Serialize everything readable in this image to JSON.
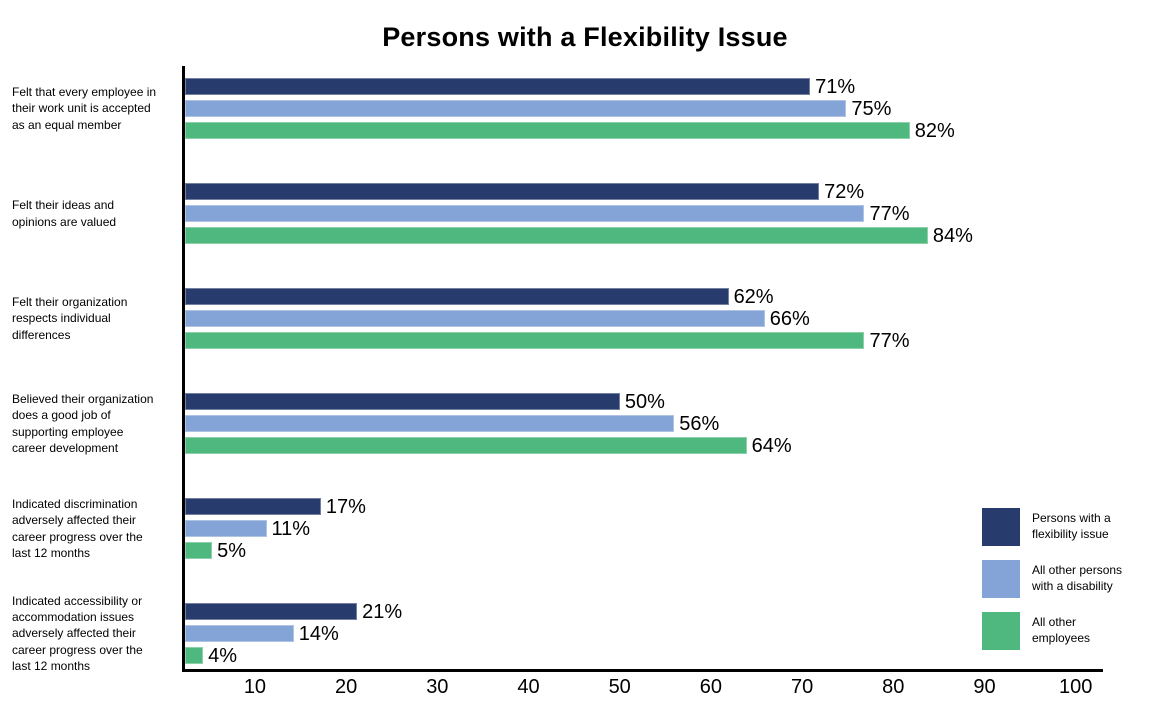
{
  "title": "Persons with a Flexibility Issue",
  "colors": {
    "series_flexibility_issue": "#283B6D",
    "series_other_disability": "#84A4D8",
    "series_other_employees": "#4FB87E",
    "axis": "#000000",
    "background": "#FFFFFF"
  },
  "chart_data": {
    "type": "bar",
    "orientation": "horizontal",
    "title": "Persons with a Flexibility Issue",
    "xlabel": "",
    "ylabel": "",
    "value_unit": "%",
    "grid": false,
    "legend_position": "right",
    "axis": {
      "min": 2,
      "max": 103,
      "ticks": [
        10,
        20,
        30,
        40,
        50,
        60,
        70,
        80,
        90,
        100
      ]
    },
    "categories": [
      "Felt that every employee in\ntheir work unit is accepted\nas an equal member",
      "Felt their ideas and\nopinions are valued",
      "Felt their organization\nrespects individual\ndifferences",
      "Believed their organization\ndoes a good job of\nsupporting employee\ncareer development",
      "Indicated discrimination\nadversely affected their\ncareer progress over the\nlast 12 months",
      "Indicated accessibility or\naccommodation issues\nadversely affected their\ncareer progress over the\nlast 12 months"
    ],
    "series": [
      {
        "name": "Persons with a flexibility issue",
        "color": "#283B6D",
        "values": [
          71,
          72,
          62,
          50,
          17,
          21
        ]
      },
      {
        "name": "All other persons with a disability",
        "color": "#84A4D8",
        "values": [
          75,
          77,
          66,
          56,
          11,
          14
        ]
      },
      {
        "name": "All other employees",
        "color": "#4FB87E",
        "values": [
          82,
          84,
          77,
          64,
          5,
          4
        ]
      }
    ]
  },
  "legend": {
    "items": [
      {
        "label": "Persons with a\nflexibility issue",
        "color": "#283B6D"
      },
      {
        "label": "All other persons\nwith a disability",
        "color": "#84A4D8"
      },
      {
        "label": "All other\nemployees",
        "color": "#4FB87E"
      }
    ]
  }
}
